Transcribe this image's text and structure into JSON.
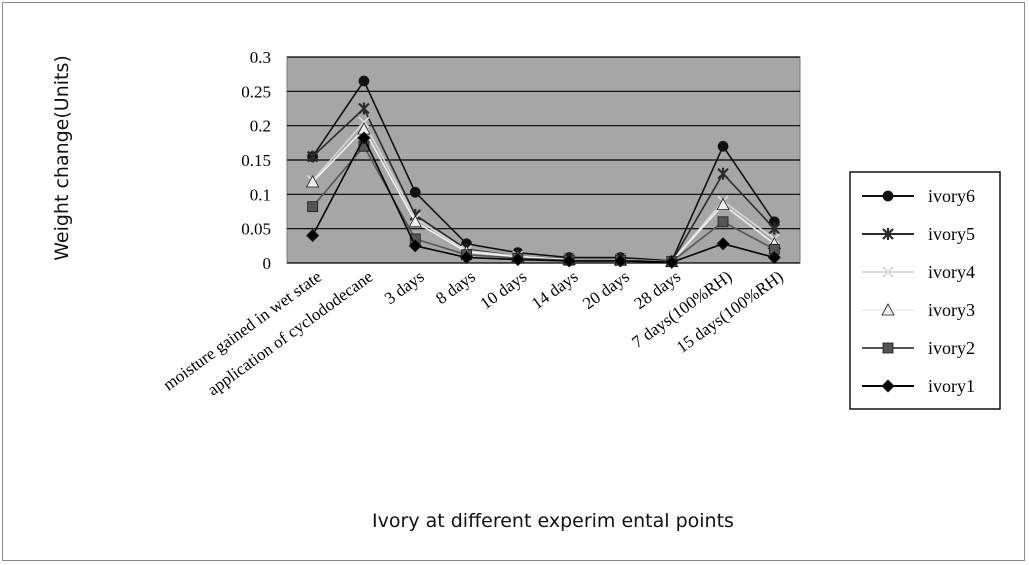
{
  "chart_data": {
    "type": "line",
    "title": "",
    "xlabel": "Ivory at different experim ental points",
    "ylabel": "Weight change(Units)",
    "ylim": [
      0,
      0.3
    ],
    "yticks": [
      "0",
      "0.05",
      "0.1",
      "0.15",
      "0.2",
      "0.25",
      "0.3"
    ],
    "grid": true,
    "legend": "right",
    "plot_background": "#a6a6a6",
    "categories": [
      "moisture gained in wet state",
      "application of cyclododecane",
      "3 days",
      "8 days",
      "10 days",
      "14 days",
      "20 days",
      "28 days",
      "7 days(100%RH)",
      "15 days(100%RH)"
    ],
    "series": [
      {
        "name": "ivory6",
        "marker": "circle",
        "color": "#111111",
        "values": [
          0.155,
          0.265,
          0.103,
          0.028,
          0.015,
          0.008,
          0.008,
          0.003,
          0.17,
          0.06
        ]
      },
      {
        "name": "ivory5",
        "marker": "star",
        "color": "#2b2b2b",
        "values": [
          0.155,
          0.225,
          0.07,
          0.02,
          0.01,
          0.006,
          0.006,
          0.002,
          0.13,
          0.05
        ]
      },
      {
        "name": "ivory4",
        "marker": "x",
        "color": "#d8d8d8",
        "values": [
          0.12,
          0.205,
          0.065,
          0.018,
          0.01,
          0.005,
          0.005,
          0.002,
          0.09,
          0.035
        ]
      },
      {
        "name": "ivory3",
        "marker": "triangle",
        "color": "#f0f0f0",
        "values": [
          0.118,
          0.195,
          0.06,
          0.016,
          0.009,
          0.005,
          0.004,
          0.002,
          0.085,
          0.028
        ]
      },
      {
        "name": "ivory2",
        "marker": "square",
        "color": "#555555",
        "values": [
          0.082,
          0.17,
          0.035,
          0.012,
          0.007,
          0.004,
          0.004,
          0.002,
          0.06,
          0.02
        ]
      },
      {
        "name": "ivory1",
        "marker": "diamond",
        "color": "#000000",
        "values": [
          0.04,
          0.182,
          0.025,
          0.008,
          0.005,
          0.003,
          0.003,
          0.001,
          0.028,
          0.008
        ]
      }
    ]
  }
}
